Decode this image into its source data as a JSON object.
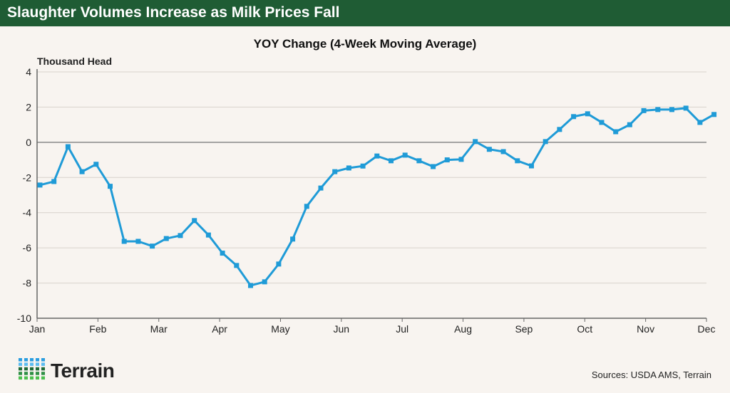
{
  "header": {
    "title": "Slaughter Volumes Increase as Milk Prices Fall"
  },
  "footer": {
    "source": "Sources: USDA AMS, Terrain",
    "logo_text": "Terrain"
  },
  "colors": {
    "header": "#1f5c34",
    "line": "#1f9bd7"
  },
  "chart_data": {
    "type": "line",
    "title": "YOY Change (4-Week Moving Average)",
    "ylabel": "Thousand Head",
    "ylim": [
      -10,
      4
    ],
    "yticks": [
      4,
      2,
      0,
      -2,
      -4,
      -6,
      -8,
      -10
    ],
    "xticks": [
      "Jan",
      "Feb",
      "Mar",
      "Apr",
      "May",
      "Jun",
      "Jul",
      "Aug",
      "Sep",
      "Oct",
      "Nov",
      "Dec"
    ],
    "grid": true,
    "x_frequency": "weekly",
    "values": [
      -2.43,
      -2.23,
      -0.25,
      -1.67,
      -1.25,
      -2.5,
      -5.63,
      -5.63,
      -5.9,
      -5.47,
      -5.3,
      -4.45,
      -5.27,
      -6.3,
      -7.0,
      -8.14,
      -7.93,
      -6.92,
      -5.5,
      -3.64,
      -2.6,
      -1.67,
      -1.46,
      -1.35,
      -0.78,
      -1.05,
      -0.73,
      -1.05,
      -1.38,
      -1.0,
      -0.97,
      0.04,
      -0.4,
      -0.53,
      -1.05,
      -1.34,
      0.04,
      0.73,
      1.46,
      1.62,
      1.13,
      0.6,
      1.0,
      1.8,
      1.86,
      1.86,
      1.94,
      1.13,
      1.58
    ]
  }
}
